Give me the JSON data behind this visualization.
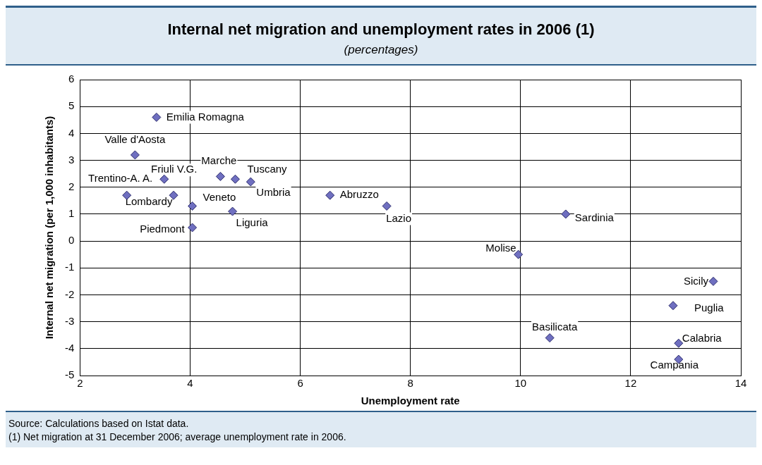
{
  "chart_data": {
    "type": "scatter",
    "title": "Internal net migration and unemployment rates in 2006 (1)",
    "subtitle": "(percentages)",
    "xlabel": "Unemployment rate",
    "ylabel": "Internal net migration (per 1,000 inhabitants)",
    "x": [
      3.39,
      3.0,
      3.53,
      2.85,
      3.7,
      4.04,
      4.04,
      4.55,
      4.82,
      5.1,
      4.77,
      6.54,
      7.57,
      10.82,
      9.96,
      13.5,
      12.77,
      10.53,
      12.87,
      12.87
    ],
    "series": [
      {
        "color": "#6f6fc0",
        "values": [
          4.6,
          3.2,
          2.3,
          1.7,
          1.7,
          1.3,
          0.5,
          2.4,
          2.3,
          2.2,
          1.1,
          1.7,
          1.3,
          1.0,
          -0.5,
          -1.5,
          -2.4,
          -3.6,
          -3.8,
          -4.4
        ]
      }
    ],
    "xlim": [
      2,
      14
    ],
    "xticks": [
      2,
      4,
      6,
      8,
      10,
      12,
      14
    ],
    "ylim": [
      -5,
      6
    ],
    "yticks": [
      -5,
      -4,
      -3,
      -2,
      -1,
      0,
      1,
      2,
      3,
      4,
      5,
      6
    ],
    "grid": true,
    "legend": false,
    "marker": "diamond",
    "annotations": [
      {
        "text": "Emilia Romagna",
        "x": 3.39,
        "y": 4.6
      },
      {
        "text": "Valle d'Aosta",
        "x": 3.0,
        "y": 3.2
      },
      {
        "text": "Friuli V.G.",
        "x": 3.53,
        "y": 2.3
      },
      {
        "text": "Trentino-A. A.",
        "x": 2.85,
        "y": 1.7
      },
      {
        "text": "Lombardy",
        "x": 3.7,
        "y": 1.7
      },
      {
        "text": "Veneto",
        "x": 4.04,
        "y": 1.3
      },
      {
        "text": "Piedmont",
        "x": 4.04,
        "y": 0.5
      },
      {
        "text": "Marche",
        "x": 4.55,
        "y": 2.4
      },
      {
        "text": "Tuscany",
        "x": 4.82,
        "y": 2.3
      },
      {
        "text": "Umbria",
        "x": 5.1,
        "y": 2.2
      },
      {
        "text": "Liguria",
        "x": 4.77,
        "y": 1.1
      },
      {
        "text": "Abruzzo",
        "x": 6.54,
        "y": 1.7
      },
      {
        "text": "Lazio",
        "x": 7.57,
        "y": 1.3
      },
      {
        "text": "Sardinia",
        "x": 10.82,
        "y": 1.0
      },
      {
        "text": "Molise",
        "x": 9.96,
        "y": -0.5
      },
      {
        "text": "Sicily",
        "x": 13.5,
        "y": -1.5
      },
      {
        "text": "Puglia",
        "x": 12.77,
        "y": -2.4
      },
      {
        "text": "Basilicata",
        "x": 10.53,
        "y": -3.6
      },
      {
        "text": "Calabria",
        "x": 12.87,
        "y": -3.8
      },
      {
        "text": "Campania",
        "x": 12.87,
        "y": -4.4
      },
      "Source: Calculations based on Istat data.",
      "(1) Net migration at 31 December 2006; average unemployment rate in 2006."
    ]
  }
}
